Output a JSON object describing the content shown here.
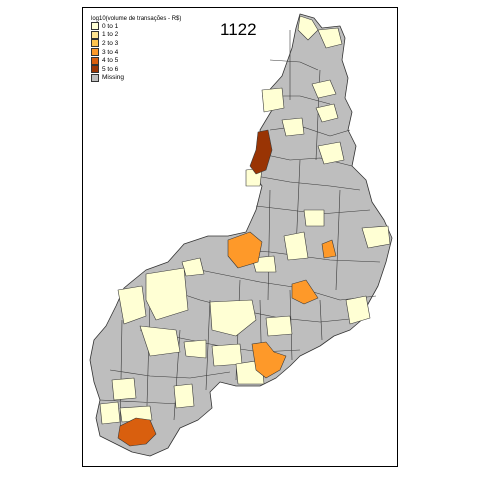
{
  "map": {
    "title": "1122",
    "legend_title": "log10(volume de transações - R$)",
    "legend": [
      {
        "label": "0 to 1",
        "color": "#FFFFD4"
      },
      {
        "label": "1 to 2",
        "color": "#FEE391"
      },
      {
        "label": "2 to 3",
        "color": "#FEC44F"
      },
      {
        "label": "3 to 4",
        "color": "#FE9929"
      },
      {
        "label": "4 to 5",
        "color": "#D95F0E"
      },
      {
        "label": "5 to 6",
        "color": "#993404"
      },
      {
        "label": "Missing",
        "color": "#BEBEBE"
      }
    ],
    "region_fill_missing": "#BEBEBE",
    "border_color": "#3a3a3a"
  }
}
